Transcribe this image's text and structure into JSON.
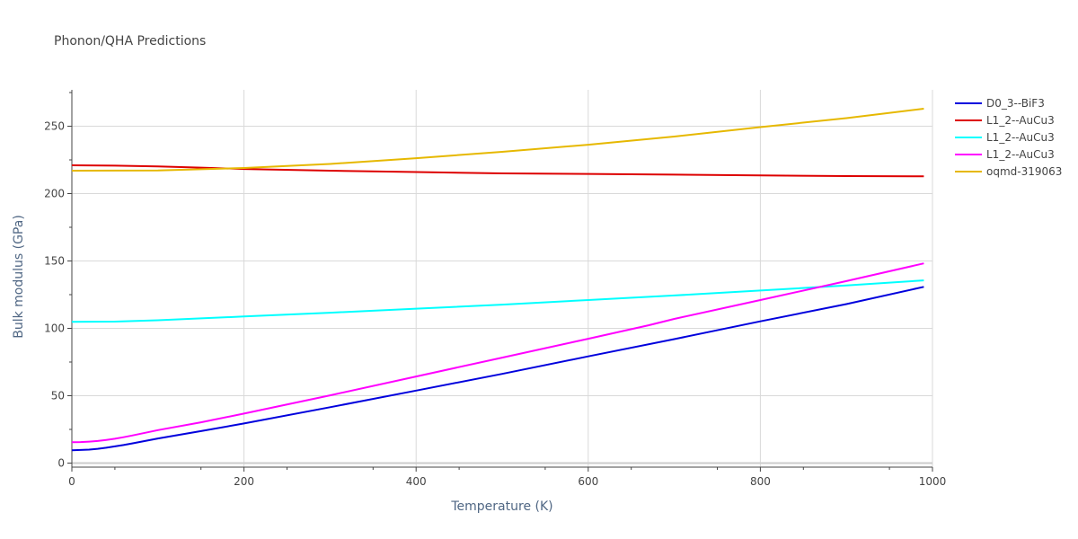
{
  "chart_data": {
    "type": "line",
    "title": "Phonon/QHA Predictions",
    "xlabel": "Temperature (K)",
    "ylabel": "Bulk modulus (GPa)",
    "xlim": [
      0,
      1000
    ],
    "ylim": [
      -3,
      277
    ],
    "xticks": [
      0,
      200,
      400,
      600,
      800,
      1000
    ],
    "yticks": [
      0,
      50,
      100,
      150,
      200,
      250
    ],
    "grid": true,
    "legend_position": "right",
    "series": [
      {
        "name": "D0_3--BiF3",
        "color": "#0000dd",
        "x": [
          0,
          10,
          20,
          30,
          40,
          50,
          60,
          70,
          100,
          150,
          200,
          300,
          400,
          500,
          600,
          700,
          800,
          900,
          990
        ],
        "y": [
          9.5,
          9.7,
          10.0,
          10.6,
          11.4,
          12.4,
          13.4,
          14.6,
          18.3,
          23.7,
          29.4,
          41.5,
          53.8,
          66.2,
          79.2,
          92.0,
          105.2,
          118.0,
          130.8
        ]
      },
      {
        "name": "L1_2--AuCu3",
        "color": "#dd0000",
        "x": [
          0,
          50,
          100,
          150,
          200,
          300,
          400,
          500,
          600,
          700,
          800,
          900,
          990
        ],
        "y": [
          221.0,
          220.7,
          220.1,
          219.3,
          218.3,
          217.0,
          216.0,
          215.0,
          214.6,
          214.1,
          213.5,
          213.0,
          212.8
        ]
      },
      {
        "name": "L1_2--AuCu3",
        "color": "#00ffff",
        "x": [
          0,
          50,
          100,
          200,
          300,
          400,
          500,
          600,
          700,
          800,
          900,
          990
        ],
        "y": [
          104.8,
          105.0,
          106.0,
          108.8,
          111.6,
          114.6,
          117.6,
          121.0,
          124.4,
          128.1,
          131.8,
          135.6
        ]
      },
      {
        "name": "L1_2--AuCu3",
        "color": "#ff00ff",
        "x": [
          0,
          10,
          20,
          30,
          40,
          50,
          60,
          70,
          100,
          150,
          200,
          300,
          400,
          500,
          600,
          670,
          700,
          800,
          900,
          990
        ],
        "y": [
          15.5,
          15.6,
          15.9,
          16.4,
          17.2,
          18.1,
          19.2,
          20.5,
          24.5,
          30.3,
          36.7,
          50.3,
          64.3,
          78.3,
          92.3,
          102.3,
          107.0,
          121.0,
          135.1,
          148.2
        ]
      },
      {
        "name": "oqmd-319063",
        "color": "#e6b800",
        "x": [
          0,
          100,
          200,
          300,
          400,
          500,
          600,
          700,
          800,
          900,
          990
        ],
        "y": [
          217.0,
          217.2,
          219.0,
          222.0,
          226.3,
          231.0,
          236.3,
          242.3,
          249.3,
          256.0,
          263.0
        ]
      }
    ]
  }
}
